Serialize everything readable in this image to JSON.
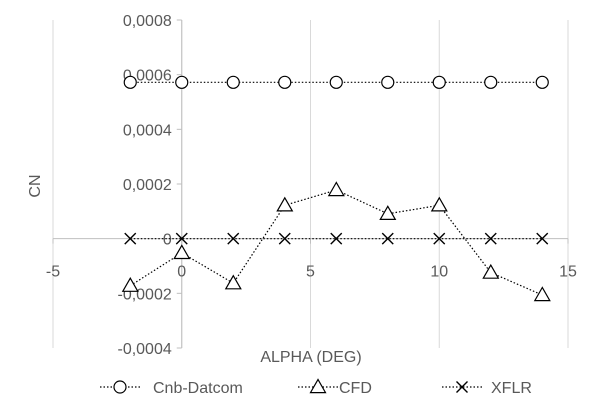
{
  "chart_data": {
    "type": "line",
    "title": "",
    "xlabel": "ALPHA (DEG)",
    "ylabel": "CN",
    "xlim": [
      -5,
      15
    ],
    "ylim": [
      -0.0004,
      0.0008
    ],
    "x_ticks": [
      -5,
      0,
      5,
      10,
      15
    ],
    "x_tick_labels": [
      "-5",
      "0",
      "5",
      "10",
      "15"
    ],
    "y_ticks": [
      -0.0004,
      -0.0002,
      0,
      0.0002,
      0.0004,
      0.0006,
      0.0008
    ],
    "y_tick_labels": [
      "-0,0004",
      "-0,0002",
      "0",
      "0,0002",
      "0,0004",
      "0,0006",
      "0,0008"
    ],
    "grid": "vertical",
    "legend_position": "bottom",
    "series": [
      {
        "name": "Cnb-Datcom",
        "marker": "circle",
        "x": [
          -2,
          0,
          2,
          4,
          6,
          8,
          10,
          12,
          14
        ],
        "y": [
          0.000572,
          0.000572,
          0.000572,
          0.000572,
          0.000572,
          0.000572,
          0.000572,
          0.000572,
          0.000572
        ]
      },
      {
        "name": "CFD",
        "marker": "triangle",
        "x": [
          -2,
          0,
          2,
          4,
          6,
          8,
          10,
          12,
          14
        ],
        "y": [
          -0.000172,
          -5.2e-05,
          -0.000163,
          0.000122,
          0.000178,
          9.1e-05,
          0.000122,
          -0.000124,
          -0.000206
        ]
      },
      {
        "name": "XFLR",
        "marker": "x",
        "x": [
          -2,
          0,
          2,
          4,
          6,
          8,
          10,
          12,
          14
        ],
        "y": [
          0,
          0,
          0,
          0,
          0,
          0,
          0,
          0,
          0
        ]
      }
    ],
    "colors": {
      "series": "#000000",
      "grid": "#d9d9d9",
      "axis": "#bfbfbf",
      "text": "#595959"
    }
  }
}
